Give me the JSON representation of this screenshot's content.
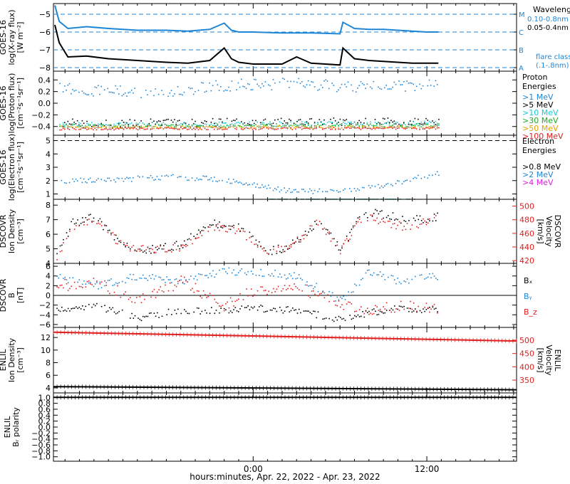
{
  "x_axis": {
    "title": "hours:minutes, Apr. 22, 2022 - Apr. 23, 2022",
    "range_hours": [
      -13.8,
      18.2
    ],
    "ticks": [
      {
        "label": "0:00",
        "value": 0
      },
      {
        "label": "12:00",
        "value": 12
      }
    ],
    "minor_every_hours": 1
  },
  "chart_data": [
    {
      "id": "xray",
      "type": "line",
      "ylabel_lines": [
        "GOES-16",
        "log(X-ray flux)",
        "[W m⁻²]"
      ],
      "ylim": [
        -8.2,
        -4.4
      ],
      "yticks": [
        -8,
        -7,
        -6,
        -5
      ],
      "ytick_labels": [
        "−8",
        "−7",
        "−6",
        "−5"
      ],
      "flare_levels": [
        {
          "label": "M",
          "value": -5
        },
        {
          "label": "C",
          "value": -6
        },
        {
          "label": "B",
          "value": -7
        },
        {
          "label": "A",
          "value": -8
        }
      ],
      "legend": {
        "title": "Wavelength",
        "entries": [
          {
            "label": "0.10-0.8nm",
            "color": "#1f86d6"
          },
          {
            "label": "0.05-0.4nm",
            "color": "#000000"
          }
        ],
        "note_lines": [
          "flare class",
          "(.1-.8nm)"
        ]
      },
      "series": [
        {
          "name": "0.10-0.8nm",
          "color": "#1f86d6",
          "x": [
            -13.7,
            -13.4,
            -12.8,
            -11.5,
            -10.0,
            -8.0,
            -6.0,
            -4.5,
            -3.0,
            -2.0,
            -1.5,
            -1.0,
            0.0,
            2.0,
            4.0,
            6.0,
            6.2,
            7.0,
            8.0,
            9.0,
            10.0,
            11.0,
            12.0,
            12.8
          ],
          "y": [
            -4.5,
            -5.4,
            -5.8,
            -5.7,
            -5.8,
            -5.9,
            -5.9,
            -5.95,
            -5.85,
            -5.5,
            -5.9,
            -6.0,
            -6.0,
            -6.05,
            -6.05,
            -6.1,
            -5.45,
            -5.8,
            -5.85,
            -5.85,
            -5.9,
            -5.95,
            -6.0,
            -6.0
          ]
        },
        {
          "name": "0.05-0.4nm",
          "color": "#000000",
          "x": [
            -13.7,
            -13.4,
            -12.8,
            -11.5,
            -10.0,
            -8.0,
            -6.0,
            -4.5,
            -3.0,
            -2.0,
            -1.5,
            -1.0,
            0.0,
            2.0,
            3.0,
            4.0,
            6.0,
            6.2,
            7.0,
            8.0,
            9.0,
            10.0,
            11.0,
            12.0,
            12.8
          ],
          "y": [
            -5.6,
            -6.6,
            -7.4,
            -7.35,
            -7.5,
            -7.6,
            -7.7,
            -7.75,
            -7.6,
            -6.9,
            -7.5,
            -7.7,
            -7.8,
            -7.8,
            -7.4,
            -7.75,
            -7.85,
            -6.9,
            -7.5,
            -7.6,
            -7.65,
            -7.7,
            -7.75,
            -7.75,
            -7.75
          ]
        }
      ]
    },
    {
      "id": "proton",
      "type": "scatter",
      "ylabel_lines": [
        "GOES-16",
        "log(Proton flux)",
        "[cm⁻²s⁻¹sr⁻¹]"
      ],
      "ylim": [
        -0.55,
        0.55
      ],
      "yticks": [
        -0.4,
        -0.2,
        0.0,
        0.2,
        0.4
      ],
      "ytick_labels": [
        "−0.4",
        "−0.2",
        "0.0",
        "0.2",
        "0.4"
      ],
      "legend": {
        "title_lines": [
          "Proton",
          "Energies"
        ],
        "entries": [
          {
            "label": ">1 MeV",
            "color": "#1f86d6"
          },
          {
            "label": ">5 MeV",
            "color": "#000000"
          },
          {
            "label": ">10 MeV",
            "color": "#19c8d8"
          },
          {
            "label": ">30 MeV",
            "color": "#22a822"
          },
          {
            "label": ">50 MeV",
            "color": "#e0a000"
          },
          {
            "label": ">100 MeV",
            "color": "#e02020"
          }
        ]
      },
      "series": [
        {
          "name": ">1 MeV",
          "color": "#1f86d6",
          "x": [
            -13.5,
            -10,
            -6,
            -3,
            0,
            3,
            6,
            9,
            12.8
          ],
          "y": [
            0.27,
            0.22,
            0.18,
            0.3,
            0.33,
            0.35,
            0.3,
            0.28,
            0.32
          ],
          "spread": 0.1
        },
        {
          "name": ">5 MeV",
          "color": "#000000",
          "x": [
            -13.5,
            12.8
          ],
          "y": [
            -0.33,
            -0.31
          ],
          "spread": 0.07
        },
        {
          "name": ">10 MeV",
          "color": "#19c8d8",
          "x": [
            -13.5,
            12.8
          ],
          "y": [
            -0.36,
            -0.34
          ],
          "spread": 0.04
        },
        {
          "name": ">30 MeV",
          "color": "#22a822",
          "x": [
            -13.5,
            12.8
          ],
          "y": [
            -0.38,
            -0.37
          ],
          "spread": 0.03
        },
        {
          "name": ">50 MeV",
          "color": "#e0a000",
          "x": [
            -13.5,
            12.8
          ],
          "y": [
            -0.41,
            -0.4
          ],
          "spread": 0.025
        },
        {
          "name": ">100 MeV",
          "color": "#e02020",
          "x": [
            -13.5,
            12.8
          ],
          "y": [
            -0.43,
            -0.42
          ],
          "spread": 0.02
        }
      ]
    },
    {
      "id": "electron",
      "type": "scatter",
      "ylabel_lines": [
        "GOES-16",
        "log(Electron flux)",
        "[cm⁻²s⁻¹sr⁻¹]"
      ],
      "ylim": [
        0.6,
        5.4
      ],
      "yticks": [
        1,
        2,
        3,
        4,
        5
      ],
      "ytick_labels": [
        "1",
        "2",
        "3",
        "4",
        "5"
      ],
      "reference_line": 5,
      "legend": {
        "title_lines": [
          "Electron",
          "Energies"
        ],
        "entries": [
          {
            "label": ">0.8 MeV",
            "color": "#000000"
          },
          {
            "label": ">2 MeV",
            "color": "#1f86d6"
          },
          {
            "label": ">4 MeV",
            "color": "#e020e0"
          }
        ]
      },
      "series": [
        {
          "name": ">2 MeV",
          "color": "#1f86d6",
          "x": [
            -13.5,
            -10,
            -6,
            -3,
            -1,
            1,
            3,
            5,
            8,
            10,
            11.5,
            12.8
          ],
          "y": [
            2.0,
            2.1,
            2.3,
            2.2,
            1.9,
            1.5,
            1.2,
            1.3,
            1.5,
            1.9,
            2.3,
            2.6
          ],
          "spread": 0.2
        },
        {
          "name": "(teal)",
          "color": "#148a8a",
          "x": [
            1,
            11.2
          ],
          "y": [
            0.65,
            0.65
          ],
          "spread": 0.0
        }
      ]
    },
    {
      "id": "dscovr_plasma",
      "type": "scatter",
      "ylabel_lines": [
        "DSCOVR",
        "Ion Density",
        "[cm⁻³]"
      ],
      "y2label_lines": [
        "DSCOVR",
        "Velocity",
        "[km/s]"
      ],
      "ylim": [
        4,
        8.4
      ],
      "yticks": [
        4,
        5,
        6,
        7,
        8
      ],
      "ytick_labels": [
        "4",
        "5",
        "6",
        "7",
        "8"
      ],
      "y2lim": [
        416,
        510
      ],
      "y2ticks": [
        420,
        440,
        460,
        480,
        500
      ],
      "y2tick_labels": [
        "420",
        "440",
        "460",
        "480",
        "500"
      ],
      "series": [
        {
          "name": "density",
          "axis": "y",
          "color": "#000000",
          "x": [
            -13.7,
            -12.5,
            -11,
            -9,
            -7,
            -5,
            -3,
            -1,
            1,
            2.5,
            4.5,
            6,
            7.5,
            9,
            10.5,
            12.8
          ],
          "y": [
            4.5,
            6.8,
            7.2,
            5.2,
            5.0,
            5.3,
            6.8,
            6.5,
            4.8,
            5.2,
            7.0,
            5.0,
            7.5,
            7.4,
            7.0,
            7.2
          ],
          "spread": 0.3
        },
        {
          "name": "velocity",
          "axis": "y2",
          "color": "#e02020",
          "x": [
            -13.7,
            -12.5,
            -11,
            -9,
            -7,
            -5,
            -3,
            -1,
            1,
            2.5,
            4.5,
            6,
            7.5,
            9,
            10.5,
            12.8
          ],
          "y": [
            420,
            470,
            480,
            442,
            438,
            440,
            470,
            465,
            433,
            440,
            478,
            436,
            485,
            478,
            470,
            482
          ],
          "spread": 6
        }
      ]
    },
    {
      "id": "dscovr_mag",
      "type": "scatter",
      "ylabel_lines": [
        "DSCOVR",
        "B",
        "[nT]"
      ],
      "ylim": [
        -6.6,
        6.6
      ],
      "yticks": [
        -6,
        -4,
        -2,
        0,
        2,
        4,
        6
      ],
      "ytick_labels": [
        "−6",
        "−4",
        "−2",
        "0",
        "2",
        "4",
        "6"
      ],
      "zero_line": true,
      "legend": {
        "entries": [
          {
            "label": "Bₓ",
            "color": "#000000"
          },
          {
            "label": "Bᵧ",
            "color": "#1f86d6"
          },
          {
            "label": "B_z",
            "color": "#e02020"
          }
        ]
      },
      "series": [
        {
          "name": "Bx",
          "color": "#000000",
          "x": [
            -13.7,
            -11,
            -8,
            -5,
            -2,
            0,
            3,
            6,
            8,
            10,
            12.8
          ],
          "y": [
            -3,
            -2,
            -4.5,
            -3,
            -3,
            -2.5,
            -3,
            -5,
            -3.5,
            -2.5,
            -3
          ],
          "spread": 0.7
        },
        {
          "name": "By",
          "color": "#1f86d6",
          "x": [
            -13.7,
            -11,
            -8,
            -5,
            -2,
            0,
            3,
            6,
            8,
            10,
            12.8
          ],
          "y": [
            4,
            2,
            4,
            3,
            5,
            5,
            4,
            -1,
            5,
            3,
            4
          ],
          "spread": 0.8
        },
        {
          "name": "Bz",
          "color": "#e02020",
          "x": [
            -13.7,
            -11,
            -8,
            -5,
            -2,
            0,
            3,
            6,
            8,
            10,
            12.8
          ],
          "y": [
            2,
            3,
            -1,
            3,
            -2,
            1,
            2,
            -2,
            -3,
            -2,
            -3
          ],
          "spread": 1.2
        }
      ]
    },
    {
      "id": "enlil_plasma",
      "type": "line",
      "ylabel_lines": [
        "ENLIL",
        "Ion Density",
        "[cm⁻³]"
      ],
      "y2label_lines": [
        "ENLIL",
        "Velocity",
        "[km/s]"
      ],
      "ylim": [
        3.2,
        13.6
      ],
      "yticks": [
        4,
        6,
        8,
        10,
        12
      ],
      "ytick_labels": [
        "4",
        "6",
        "8",
        "10",
        "12"
      ],
      "y2lim": [
        302,
        548
      ],
      "y2ticks": [
        350,
        400,
        450,
        500
      ],
      "y2tick_labels": [
        "350",
        "400",
        "450",
        "500"
      ],
      "series": [
        {
          "name": "density",
          "axis": "y",
          "color": "#000000",
          "x": [
            -13.8,
            18.2
          ],
          "y": [
            4.2,
            3.7
          ]
        },
        {
          "name": "velocity",
          "axis": "y2",
          "color": "#e02020",
          "x": [
            -13.8,
            18.2
          ],
          "y": [
            530,
            497
          ]
        }
      ]
    },
    {
      "id": "enlil_polarity",
      "type": "line",
      "ylabel_lines": [
        "ENLIL",
        "Bᵣ polarity"
      ],
      "ylim": [
        -1.15,
        1.15
      ],
      "yticks": [
        -1.0,
        -0.8,
        -0.6,
        -0.4,
        -0.2,
        0.0,
        0.2,
        0.4,
        0.6,
        0.8,
        1.0
      ],
      "ytick_labels": [
        "−1.0",
        "−0.8",
        "−0.6",
        "−0.4",
        "−0.2",
        "0.0",
        "0.2",
        "0.4",
        "0.6",
        "0.8",
        "1.0"
      ],
      "series": [
        {
          "name": "polarity",
          "color": "#000000",
          "x": [
            -13.8,
            18.2
          ],
          "y": [
            1.0,
            1.0
          ]
        }
      ]
    }
  ]
}
